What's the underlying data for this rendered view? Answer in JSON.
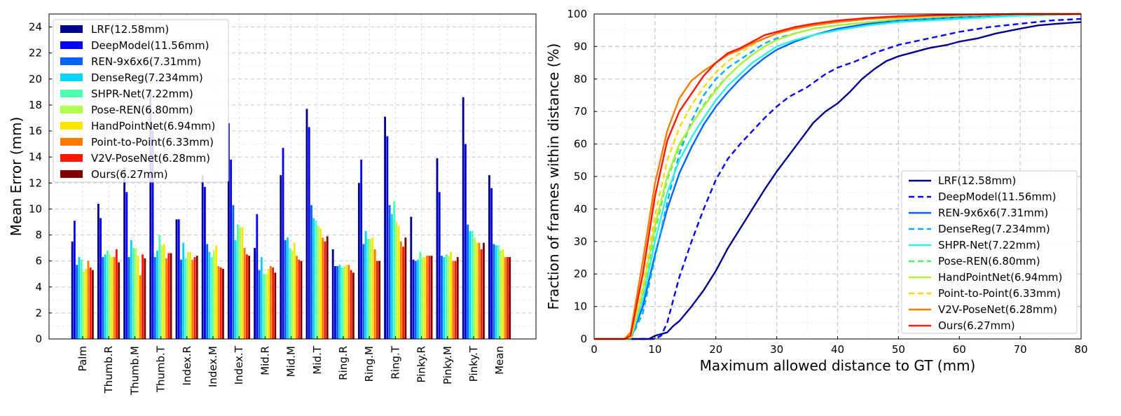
{
  "chart_data": [
    {
      "type": "bar",
      "ylabel": "Mean Error (mm)",
      "xlabel": "",
      "ylim": [
        0,
        25
      ],
      "yticks": [
        0,
        2,
        4,
        6,
        8,
        10,
        12,
        14,
        16,
        18,
        20,
        22,
        24
      ],
      "grid": true,
      "legend_position": "top-left",
      "categories": [
        "Palm",
        "Thumb.R",
        "Thumb.M",
        "Thumb.T",
        "Index.R",
        "Index.M",
        "Index.T",
        "Mid.R",
        "Mid.M",
        "Mid.T",
        "Ring.R",
        "Ring.M",
        "Ring.T",
        "Pinky.R",
        "Pinky.M",
        "Pinky.T",
        "Mean"
      ],
      "series": [
        {
          "name": "LRF(12.58mm)",
          "color": "#00008f",
          "values": [
            7.5,
            10.4,
            13.2,
            19.2,
            9.2,
            12.6,
            16.6,
            7.0,
            12.6,
            17.7,
            6.9,
            12.0,
            17.1,
            9.4,
            13.9,
            18.6,
            12.6
          ]
        },
        {
          "name": "DeepModel(11.56mm)",
          "color": "#0000ff",
          "values": [
            9.1,
            9.3,
            11.3,
            16.0,
            9.2,
            11.7,
            13.8,
            9.6,
            14.7,
            16.3,
            5.6,
            13.8,
            15.6,
            6.1,
            11.3,
            15.0,
            11.6
          ]
        },
        {
          "name": "REN-9x6x6(7.31mm)",
          "color": "#0063ff",
          "values": [
            5.7,
            6.3,
            6.3,
            6.3,
            6.1,
            7.3,
            10.3,
            5.3,
            7.6,
            10.3,
            5.6,
            7.3,
            10.3,
            6.0,
            6.4,
            8.8,
            7.3
          ]
        },
        {
          "name": "DenseReg(7.234mm)",
          "color": "#00d4ff",
          "values": [
            6.3,
            6.5,
            7.6,
            6.8,
            7.4,
            6.7,
            7.6,
            6.3,
            7.8,
            9.3,
            5.7,
            8.3,
            9.6,
            6.1,
            6.3,
            8.3,
            7.2
          ]
        },
        {
          "name": "SHPR-Net(7.22mm)",
          "color": "#4effb0",
          "values": [
            6.1,
            6.8,
            7.0,
            8.0,
            6.2,
            6.3,
            8.8,
            5.0,
            7.0,
            9.1,
            5.5,
            7.7,
            10.6,
            6.7,
            6.5,
            8.3,
            7.2
          ]
        },
        {
          "name": "Pose-REN(6.80mm)",
          "color": "#b0ff4e",
          "values": [
            5.2,
            6.5,
            7.0,
            7.2,
            6.7,
            6.8,
            8.6,
            5.0,
            6.8,
            8.7,
            5.6,
            7.7,
            9.0,
            6.3,
            6.4,
            7.8,
            6.8
          ]
        },
        {
          "name": "HandPointNet(6.94mm)",
          "color": "#ffe500",
          "values": [
            5.4,
            6.3,
            6.4,
            7.3,
            6.7,
            7.2,
            8.6,
            5.4,
            7.4,
            8.5,
            5.7,
            7.8,
            8.7,
            6.3,
            6.7,
            7.4,
            6.9
          ]
        },
        {
          "name": "Point-to-Point(6.33mm)",
          "color": "#ff7b00",
          "values": [
            6.0,
            6.3,
            4.9,
            6.2,
            6.1,
            5.6,
            7.0,
            5.6,
            6.4,
            7.8,
            5.7,
            6.9,
            7.5,
            6.4,
            6.0,
            7.4,
            6.3
          ]
        },
        {
          "name": "V2V-PoseNet(6.28mm)",
          "color": "#ff1800",
          "values": [
            5.5,
            6.9,
            6.5,
            6.6,
            6.3,
            5.5,
            6.5,
            5.5,
            6.1,
            7.5,
            5.3,
            6.0,
            7.1,
            6.4,
            6.0,
            6.9,
            6.3
          ]
        },
        {
          "name": "Ours(6.27mm)",
          "color": "#800000",
          "values": [
            5.3,
            5.9,
            6.2,
            6.6,
            6.4,
            5.4,
            6.4,
            5.1,
            6.0,
            7.9,
            5.1,
            6.0,
            7.8,
            6.4,
            6.3,
            7.4,
            6.3
          ]
        }
      ]
    },
    {
      "type": "line",
      "xlabel": "Maximum allowed distance to GT (mm)",
      "ylabel": "Fraction of frames within distance (%)",
      "xlim": [
        0,
        80
      ],
      "ylim": [
        0,
        100
      ],
      "xticks": [
        0,
        10,
        20,
        30,
        40,
        50,
        60,
        70,
        80
      ],
      "yticks": [
        0,
        10,
        20,
        30,
        40,
        50,
        60,
        70,
        80,
        90,
        100
      ],
      "grid": true,
      "legend_position": "bottom-right",
      "series": [
        {
          "name": "LRF(12.58mm)",
          "color": "#00008f",
          "dash": "solid",
          "x": [
            0,
            9,
            10,
            12,
            13,
            14,
            16,
            18,
            20,
            22,
            24,
            26,
            28,
            30,
            32,
            34,
            36,
            38,
            40,
            42,
            44,
            46,
            48,
            50,
            52,
            55,
            58,
            60,
            63,
            66,
            70,
            73,
            76,
            80
          ],
          "y": [
            0,
            0,
            1,
            2,
            4,
            5.5,
            10,
            15,
            21,
            28,
            34,
            40,
            46,
            51.5,
            56.5,
            61.5,
            66.5,
            70,
            72.5,
            76,
            80,
            83,
            85.5,
            87,
            88,
            89.5,
            90.5,
            91.5,
            92.5,
            94,
            95.5,
            96.5,
            97,
            97.5
          ]
        },
        {
          "name": "DeepModel(11.56mm)",
          "color": "#0000ff",
          "dash": "dashed",
          "x": [
            0,
            10,
            11,
            12,
            13,
            14,
            16,
            18,
            20,
            22,
            24,
            26,
            28,
            30,
            32,
            35,
            38,
            40,
            43,
            46,
            50,
            55,
            60,
            65,
            70,
            75,
            80
          ],
          "y": [
            0,
            0,
            1,
            5,
            12,
            19,
            30,
            40,
            49,
            55.5,
            60,
            64,
            68,
            71.5,
            74.5,
            77.5,
            81.5,
            83.5,
            85.5,
            88,
            90.5,
            92.5,
            94.5,
            96,
            97,
            98,
            98.5
          ]
        },
        {
          "name": "REN-9x6x6(7.31mm)",
          "color": "#0063ff",
          "dash": "solid",
          "x": [
            0,
            6,
            8,
            10,
            12,
            14,
            16,
            18,
            20,
            22,
            24,
            26,
            28,
            30,
            33,
            36,
            40,
            45,
            50,
            55,
            60,
            70,
            80
          ],
          "y": [
            0,
            0,
            10,
            26,
            40,
            51,
            59,
            66,
            71.5,
            76,
            80,
            83.5,
            86.5,
            89,
            91.5,
            93.5,
            95.5,
            97,
            98,
            98.5,
            99,
            99.5,
            100
          ]
        },
        {
          "name": "DenseReg(7.234mm)",
          "color": "#00aaff",
          "dash": "dashed",
          "x": [
            0,
            6,
            8,
            10,
            12,
            14,
            16,
            18,
            20,
            22,
            24,
            26,
            28,
            30,
            33,
            36,
            40,
            45,
            50,
            55,
            60,
            70,
            80
          ],
          "y": [
            0,
            0,
            8,
            25,
            42,
            57,
            67,
            75,
            80,
            83.5,
            86,
            88.5,
            91,
            92.5,
            94,
            95.5,
            96.5,
            97.5,
            98,
            98.5,
            99,
            99.5,
            100
          ]
        },
        {
          "name": "SHPR-Net(7.22mm)",
          "color": "#2ef0e0",
          "dash": "solid",
          "x": [
            0,
            6,
            8,
            10,
            12,
            14,
            16,
            18,
            20,
            22,
            24,
            26,
            28,
            30,
            33,
            36,
            40,
            45,
            50,
            55,
            60,
            70,
            80
          ],
          "y": [
            0,
            0,
            12,
            30,
            45,
            55,
            62,
            68,
            73.5,
            78,
            81.5,
            85,
            87.5,
            90,
            92,
            93.5,
            95,
            96.5,
            97.5,
            98,
            98.5,
            99.5,
            100
          ]
        },
        {
          "name": "Pose-REN(6.80mm)",
          "color": "#4cf060",
          "dash": "dashed",
          "x": [
            0,
            6,
            8,
            10,
            12,
            14,
            16,
            18,
            20,
            22,
            24,
            26,
            28,
            30,
            33,
            36,
            40,
            45,
            50,
            55,
            60,
            70,
            80
          ],
          "y": [
            0,
            0,
            14,
            33,
            49,
            59,
            66,
            72,
            77,
            81,
            84.5,
            87.5,
            90,
            92,
            94,
            95.5,
            96.5,
            97.5,
            98.5,
            99,
            99.5,
            100,
            100
          ]
        },
        {
          "name": "HandPointNet(6.94mm)",
          "color": "#b4ee3c",
          "dash": "solid",
          "x": [
            0,
            6,
            8,
            10,
            12,
            14,
            16,
            18,
            20,
            22,
            24,
            26,
            28,
            30,
            33,
            36,
            40,
            45,
            50,
            55,
            60,
            70,
            80
          ],
          "y": [
            0,
            0,
            15,
            35,
            50,
            60,
            66,
            71.5,
            76.5,
            81,
            84.5,
            87.5,
            90,
            92,
            94,
            95.5,
            96.5,
            97.5,
            98.5,
            99,
            99.5,
            100,
            100
          ]
        },
        {
          "name": "Point-to-Point(6.33mm)",
          "color": "#ffd800",
          "dash": "dashed",
          "x": [
            0,
            6,
            8,
            10,
            12,
            14,
            16,
            18,
            20,
            22,
            24,
            26,
            28,
            30,
            33,
            36,
            40,
            45,
            50,
            55,
            60,
            70,
            80
          ],
          "y": [
            0,
            0,
            16,
            38,
            55,
            65,
            72,
            77.5,
            82,
            85.5,
            88,
            90.5,
            92.5,
            94,
            95.5,
            96.5,
            97.5,
            98.5,
            99,
            99.5,
            99.7,
            100,
            100
          ]
        },
        {
          "name": "V2V-PoseNet(6.28mm)",
          "color": "#ff7b00",
          "dash": "solid",
          "x": [
            0,
            5,
            6,
            8,
            10,
            12,
            14,
            16,
            18,
            20,
            22,
            24,
            26,
            28,
            30,
            33,
            36,
            40,
            45,
            50,
            55,
            60,
            70,
            80
          ],
          "y": [
            0,
            0,
            2,
            24,
            48,
            64,
            74,
            79.5,
            82.5,
            85,
            87.5,
            89,
            91,
            92.5,
            94,
            95.5,
            96.5,
            97.5,
            98.5,
            99,
            99.5,
            99.7,
            100,
            100
          ]
        },
        {
          "name": "Ours(6.27mm)",
          "color": "#ff1800",
          "dash": "solid",
          "x": [
            0,
            5,
            6,
            8,
            10,
            12,
            14,
            16,
            18,
            20,
            22,
            24,
            26,
            28,
            30,
            33,
            36,
            40,
            45,
            50,
            55,
            60,
            70,
            80
          ],
          "y": [
            0,
            0,
            1,
            20,
            44,
            61,
            70,
            75.5,
            81,
            85,
            88,
            89.5,
            91.5,
            93.5,
            94.5,
            96,
            97,
            98,
            98.8,
            99.3,
            99.6,
            99.8,
            100,
            100
          ]
        }
      ]
    }
  ]
}
